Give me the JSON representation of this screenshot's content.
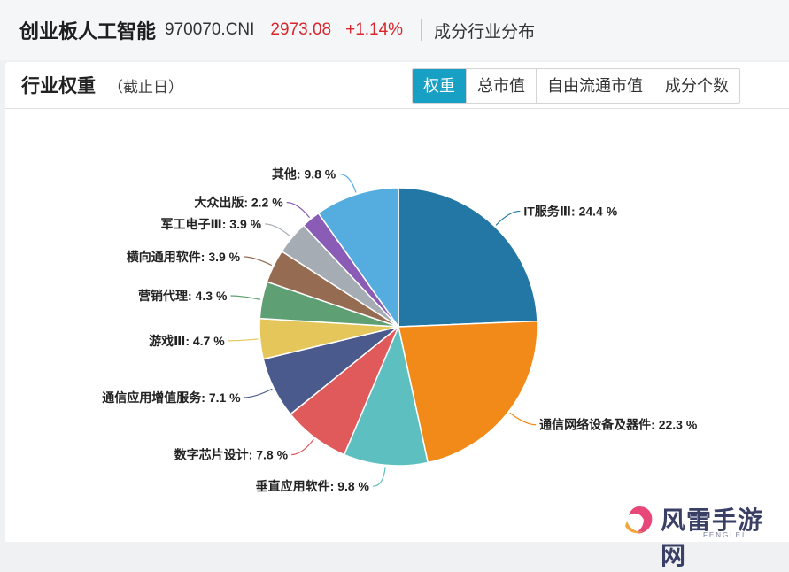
{
  "header": {
    "index_name": "创业板人工智能",
    "index_code": "970070.CNI",
    "price": "2973.08",
    "change": "+1.14%",
    "section_tab": "成分行业分布"
  },
  "panel": {
    "title": "行业权重",
    "subtitle": "（截止日）",
    "tabs": [
      {
        "label": "权重",
        "active": true
      },
      {
        "label": "总市值",
        "active": false
      },
      {
        "label": "自由流通市值",
        "active": false
      },
      {
        "label": "成分个数",
        "active": false
      }
    ]
  },
  "chart_data": {
    "type": "pie",
    "slices": [
      {
        "name": "IT服务Ⅲ",
        "value": 24.4,
        "label": "IT服务Ⅲ: 24.4 %",
        "color": "#2377a4"
      },
      {
        "name": "通信网络设备及器件",
        "value": 22.3,
        "label": "通信网络设备及器件: 22.3 %",
        "color": "#f28a1a"
      },
      {
        "name": "垂直应用软件",
        "value": 9.8,
        "label": "垂直应用软件: 9.8 %",
        "color": "#5dbfbf"
      },
      {
        "name": "数字芯片设计",
        "value": 7.8,
        "label": "数字芯片设计: 7.8 %",
        "color": "#e05a5c"
      },
      {
        "name": "通信应用增值服务",
        "value": 7.1,
        "label": "通信应用增值服务: 7.1 %",
        "color": "#4a5a8d"
      },
      {
        "name": "游戏Ⅲ",
        "value": 4.7,
        "label": "游戏Ⅲ: 4.7 %",
        "color": "#e4c65a"
      },
      {
        "name": "营销代理",
        "value": 4.3,
        "label": "营销代理: 4.3 %",
        "color": "#5e9f74"
      },
      {
        "name": "横向通用软件",
        "value": 3.9,
        "label": "横向通用软件: 3.9 %",
        "color": "#956b52"
      },
      {
        "name": "军工电子Ⅲ",
        "value": 3.9,
        "label": "军工电子Ⅲ: 3.9 %",
        "color": "#a5acb4"
      },
      {
        "name": "大众出版",
        "value": 2.2,
        "label": "大众出版: 2.2 %",
        "color": "#8a5cb5"
      },
      {
        "name": "其他",
        "value": 9.8,
        "label": "其他: 9.8 %",
        "color": "#55addf"
      }
    ]
  },
  "watermark": {
    "text": "风雷手游网",
    "sub": "FENGLEI"
  }
}
